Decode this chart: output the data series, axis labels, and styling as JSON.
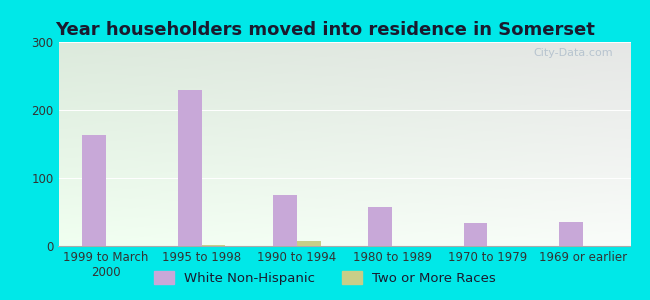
{
  "title": "Year householders moved into residence in Somerset",
  "categories": [
    "1999 to March\n2000",
    "1995 to 1998",
    "1990 to 1994",
    "1980 to 1989",
    "1970 to 1979",
    "1969 or earlier"
  ],
  "white_non_hispanic": [
    163,
    229,
    75,
    57,
    34,
    36
  ],
  "two_or_more_races": [
    0,
    2,
    8,
    0,
    0,
    0
  ],
  "bar_color_white": "#c8a8d8",
  "bar_color_two": "#c8ce88",
  "fig_bg_color": "#00e8e8",
  "plot_bg_color": "#edfaed",
  "ylim": [
    0,
    300
  ],
  "yticks": [
    0,
    100,
    200,
    300
  ],
  "title_fontsize": 13,
  "tick_fontsize": 8.5,
  "legend_fontsize": 9.5,
  "bar_width": 0.25,
  "watermark": "City-Data.com"
}
